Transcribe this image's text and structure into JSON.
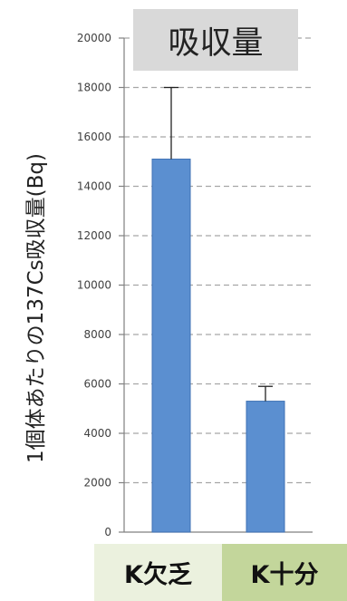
{
  "chart_data": {
    "type": "bar",
    "title": "吸収量",
    "ylabel": "1個体あたりの137Cs吸収量(Bq)",
    "xlabel": "",
    "categories": [
      "K欠乏",
      "K十分"
    ],
    "values": [
      15100,
      5300
    ],
    "errors": [
      2900,
      600
    ],
    "ylim": [
      0,
      20000
    ],
    "yticks": [
      0,
      2000,
      4000,
      6000,
      8000,
      10000,
      12000,
      14000,
      16000,
      18000,
      20000
    ],
    "grid": true,
    "legend": "none",
    "colors": {
      "bar": "#5b8fd0",
      "bar_edge": "#3f72b4",
      "grid": "#a6a6a6",
      "category_1_bg": "#ebf1de",
      "category_2_bg": "#c3d69b",
      "title_bg": "#d9d9d9"
    }
  }
}
